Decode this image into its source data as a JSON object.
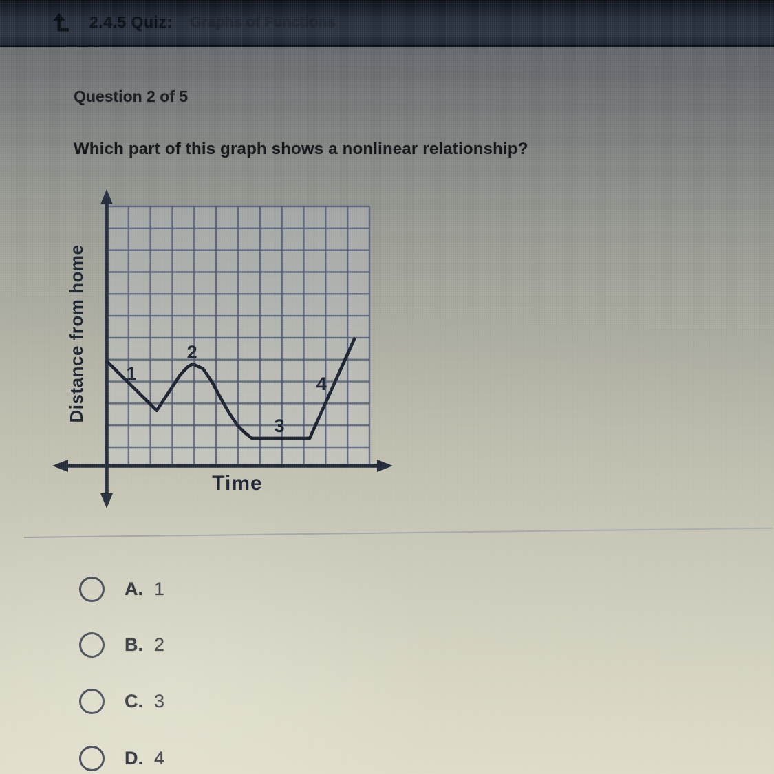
{
  "header": {
    "back_icon": "exit-up-arrow-icon",
    "quiz_code": "2.4.5 Quiz:",
    "quiz_title": "Graphs of Functions"
  },
  "question": {
    "counter": "Question 2 of 5",
    "prompt": "Which part of this graph shows a nonlinear relationship?"
  },
  "chart_data": {
    "type": "line",
    "title": "",
    "xlabel": "Time",
    "ylabel": "Distance from home",
    "x_tick_labels": [],
    "y_tick_labels": [],
    "axes_style": "double-headed arrows, no numeric ticks",
    "grid": {
      "columns": 12,
      "rows": 11,
      "visible": true
    },
    "segments": [
      {
        "label": "1",
        "kind": "linear decreasing",
        "from": [
          0,
          4.78
        ],
        "to": [
          2.29,
          2.52
        ],
        "label_pos": [
          1.13,
          4.21
        ]
      },
      {
        "label": "2",
        "kind": "nonlinear curved hump",
        "from": [
          2.29,
          2.52
        ],
        "peak": [
          3.93,
          4.65
        ],
        "to": [
          6.63,
          1.26
        ],
        "label_pos": [
          3.9,
          5.19
        ]
      },
      {
        "label": "3",
        "kind": "constant horizontal",
        "from": [
          6.63,
          1.26
        ],
        "to": [
          9.27,
          1.26
        ],
        "label_pos": [
          7.89,
          1.82
        ]
      },
      {
        "label": "4",
        "kind": "linear increasing",
        "from": [
          9.27,
          1.26
        ],
        "to": [
          11.31,
          5.79
        ],
        "label_pos": [
          9.81,
          3.74
        ]
      }
    ],
    "curve_points": [
      [
        0,
        4.78
      ],
      [
        2.29,
        2.52
      ],
      [
        2.67,
        3.11
      ],
      [
        3.05,
        3.68
      ],
      [
        3.36,
        4.15
      ],
      [
        3.68,
        4.5
      ],
      [
        3.93,
        4.65
      ],
      [
        4.4,
        4.43
      ],
      [
        4.81,
        3.83
      ],
      [
        5.18,
        3.14
      ],
      [
        5.59,
        2.42
      ],
      [
        5.97,
        1.85
      ],
      [
        6.31,
        1.51
      ],
      [
        6.63,
        1.26
      ],
      [
        9.27,
        1.26
      ],
      [
        11.31,
        5.79
      ]
    ]
  },
  "options": [
    {
      "letter": "A.",
      "value": "1"
    },
    {
      "letter": "B.",
      "value": "2"
    },
    {
      "letter": "C.",
      "value": "3"
    },
    {
      "letter": "D.",
      "value": "4"
    }
  ],
  "colors": {
    "header_bg": "#242c3a",
    "ink": "#1b2330",
    "grid_line": "#4b5876",
    "divider": "#9aa0a8",
    "page_top": "#555a63",
    "page_bottom": "#e0ddca"
  }
}
